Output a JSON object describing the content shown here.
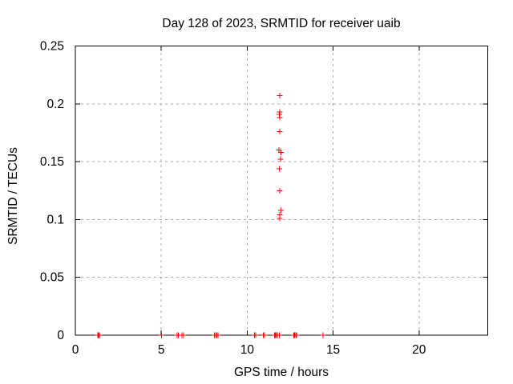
{
  "chart_data": {
    "type": "scatter",
    "title": "Day 128 of 2023, SRMTID for receiver uaib",
    "xlabel": "GPS time / hours",
    "ylabel": "SRMTID / TECUs",
    "xlim": [
      0,
      24
    ],
    "ylim": [
      0,
      0.25
    ],
    "xticks": {
      "values": [
        0,
        5,
        10,
        15,
        20
      ],
      "labels": [
        "0",
        "5",
        "10",
        "15",
        "20"
      ]
    },
    "yticks": {
      "values": [
        0,
        0.05,
        0.1,
        0.15,
        0.2,
        0.25
      ],
      "labels": [
        "0",
        "0.05",
        "0.1",
        "0.15",
        "0.2",
        "0.25"
      ]
    },
    "grid": true,
    "legend": "none",
    "marker": {
      "shape": "plus",
      "color": "#ff0000",
      "size": 7
    },
    "colors": {
      "marker": "#ff0000",
      "grid": "#a8a8a8",
      "axis": "#000000",
      "text": "#000000",
      "background": "#ffffff"
    },
    "series": [
      {
        "name": "SRMTID",
        "points": [
          [
            1.3,
            0
          ],
          [
            1.35,
            0
          ],
          [
            1.4,
            0
          ],
          [
            5.01,
            0
          ],
          [
            5.93,
            0
          ],
          [
            5.99,
            0
          ],
          [
            6.21,
            0
          ],
          [
            6.3,
            0
          ],
          [
            8.1,
            0
          ],
          [
            8.17,
            0
          ],
          [
            8.24,
            0
          ],
          [
            8.31,
            0
          ],
          [
            10.42,
            0
          ],
          [
            10.5,
            0
          ],
          [
            10.93,
            0
          ],
          [
            11.0,
            0
          ],
          [
            11.6,
            0
          ],
          [
            11.65,
            0
          ],
          [
            11.7,
            0
          ],
          [
            11.75,
            0
          ],
          [
            11.88,
            0
          ],
          [
            12.7,
            0
          ],
          [
            12.76,
            0
          ],
          [
            12.82,
            0
          ],
          [
            12.88,
            0
          ],
          [
            14.41,
            0
          ],
          [
            11.9,
            0.207
          ],
          [
            11.9,
            0.193
          ],
          [
            11.88,
            0.191
          ],
          [
            11.9,
            0.188
          ],
          [
            11.9,
            0.176
          ],
          [
            11.86,
            0.16
          ],
          [
            11.96,
            0.158
          ],
          [
            11.94,
            0.152
          ],
          [
            11.88,
            0.144
          ],
          [
            11.9,
            0.125
          ],
          [
            11.96,
            0.108
          ],
          [
            11.9,
            0.104
          ],
          [
            11.9,
            0.101
          ]
        ]
      }
    ]
  }
}
